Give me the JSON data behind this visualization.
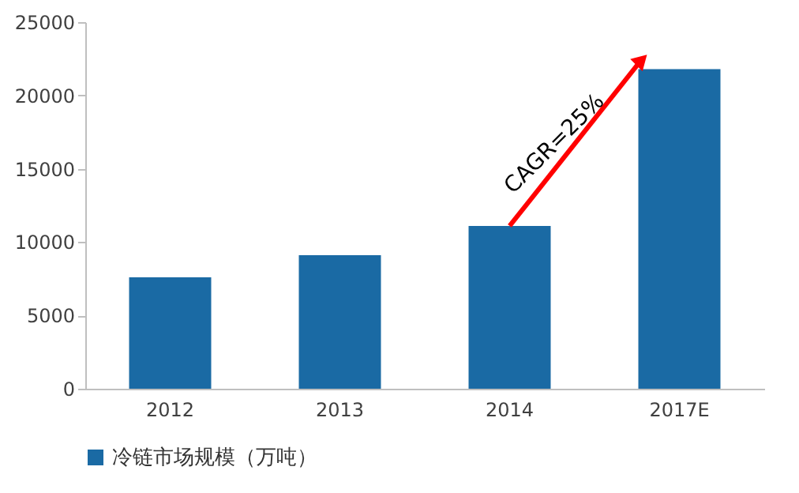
{
  "chart_data": {
    "type": "bar",
    "categories": [
      "2012",
      "2013",
      "2014",
      "2017E"
    ],
    "series": [
      {
        "name": "冷链市场规模（万吨）",
        "color": "#1a6aa4",
        "values": [
          7600,
          9100,
          11100,
          21800
        ]
      }
    ],
    "ylim": [
      0,
      25000
    ],
    "yticks": [
      0,
      5000,
      10000,
      15000,
      20000,
      25000
    ],
    "grid": false,
    "legend": "bottom",
    "annotations": [
      "CAGR=25%"
    ]
  }
}
